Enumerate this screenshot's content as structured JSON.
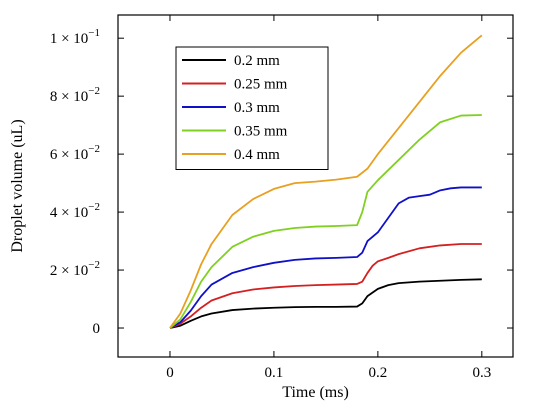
{
  "chart_data": {
    "type": "line",
    "xlabel": "Time (ms)",
    "ylabel": "Droplet volume (uL)",
    "xlim": [
      -0.05,
      0.33
    ],
    "ylim": [
      -0.01,
      0.108
    ],
    "grid": false,
    "legend_position": "top-left",
    "x_ticks": [
      0,
      0.1,
      0.2,
      0.3
    ],
    "x_tick_labels": [
      "0",
      "0.1",
      "0.2",
      "0.3"
    ],
    "y_ticks": [
      0,
      0.02,
      0.04,
      0.06,
      0.08,
      0.1
    ],
    "y_tick_labels": [
      {
        "text": "0",
        "exp": ""
      },
      {
        "text": "2 × 10",
        "exp": "−2"
      },
      {
        "text": "4 × 10",
        "exp": "−2"
      },
      {
        "text": "6 × 10",
        "exp": "−2"
      },
      {
        "text": "8 × 10",
        "exp": "−2"
      },
      {
        "text": "1 × 10",
        "exp": "−1"
      }
    ],
    "series": [
      {
        "name": "0.2 mm",
        "color": "#000000",
        "x": [
          0,
          0.01,
          0.02,
          0.03,
          0.04,
          0.06,
          0.08,
          0.1,
          0.12,
          0.14,
          0.16,
          0.18,
          0.185,
          0.19,
          0.2,
          0.21,
          0.22,
          0.24,
          0.26,
          0.28,
          0.3
        ],
        "y": [
          0,
          0.0008,
          0.0025,
          0.004,
          0.005,
          0.0062,
          0.0067,
          0.007,
          0.0072,
          0.0073,
          0.0073,
          0.0074,
          0.0085,
          0.011,
          0.0135,
          0.0148,
          0.0155,
          0.016,
          0.0163,
          0.0166,
          0.0168
        ]
      },
      {
        "name": "0.25 mm",
        "color": "#d42020",
        "x": [
          0,
          0.01,
          0.02,
          0.03,
          0.04,
          0.06,
          0.08,
          0.1,
          0.12,
          0.14,
          0.16,
          0.18,
          0.185,
          0.19,
          0.195,
          0.2,
          0.21,
          0.22,
          0.24,
          0.26,
          0.28,
          0.3
        ],
        "y": [
          0,
          0.0015,
          0.004,
          0.007,
          0.0095,
          0.012,
          0.0133,
          0.014,
          0.0145,
          0.0148,
          0.015,
          0.0152,
          0.016,
          0.019,
          0.0215,
          0.023,
          0.0242,
          0.0255,
          0.0275,
          0.0285,
          0.029,
          0.029
        ]
      },
      {
        "name": "0.3 mm",
        "color": "#1010c8",
        "x": [
          0,
          0.01,
          0.02,
          0.03,
          0.04,
          0.06,
          0.08,
          0.1,
          0.12,
          0.14,
          0.16,
          0.18,
          0.185,
          0.19,
          0.2,
          0.21,
          0.22,
          0.23,
          0.24,
          0.25,
          0.26,
          0.27,
          0.28,
          0.3
        ],
        "y": [
          0,
          0.002,
          0.006,
          0.011,
          0.015,
          0.019,
          0.021,
          0.0225,
          0.0235,
          0.024,
          0.0242,
          0.0245,
          0.026,
          0.03,
          0.033,
          0.038,
          0.043,
          0.045,
          0.0455,
          0.046,
          0.0475,
          0.0482,
          0.0485,
          0.0485
        ]
      },
      {
        "name": "0.35 mm",
        "color": "#80d020",
        "x": [
          0,
          0.01,
          0.02,
          0.03,
          0.04,
          0.06,
          0.08,
          0.1,
          0.12,
          0.14,
          0.16,
          0.18,
          0.185,
          0.19,
          0.2,
          0.21,
          0.22,
          0.24,
          0.26,
          0.28,
          0.3
        ],
        "y": [
          0,
          0.003,
          0.009,
          0.016,
          0.021,
          0.028,
          0.0315,
          0.0335,
          0.0345,
          0.035,
          0.0352,
          0.0355,
          0.04,
          0.047,
          0.051,
          0.0545,
          0.058,
          0.065,
          0.071,
          0.0733,
          0.0735
        ]
      },
      {
        "name": "0.4 mm",
        "color": "#e8a020",
        "x": [
          0,
          0.01,
          0.02,
          0.03,
          0.04,
          0.06,
          0.08,
          0.1,
          0.12,
          0.14,
          0.16,
          0.18,
          0.19,
          0.2,
          0.21,
          0.22,
          0.24,
          0.26,
          0.28,
          0.3
        ],
        "y": [
          0,
          0.005,
          0.013,
          0.022,
          0.029,
          0.039,
          0.0445,
          0.048,
          0.05,
          0.0505,
          0.0512,
          0.0522,
          0.055,
          0.06,
          0.0645,
          0.069,
          0.078,
          0.087,
          0.095,
          0.101
        ]
      }
    ]
  }
}
